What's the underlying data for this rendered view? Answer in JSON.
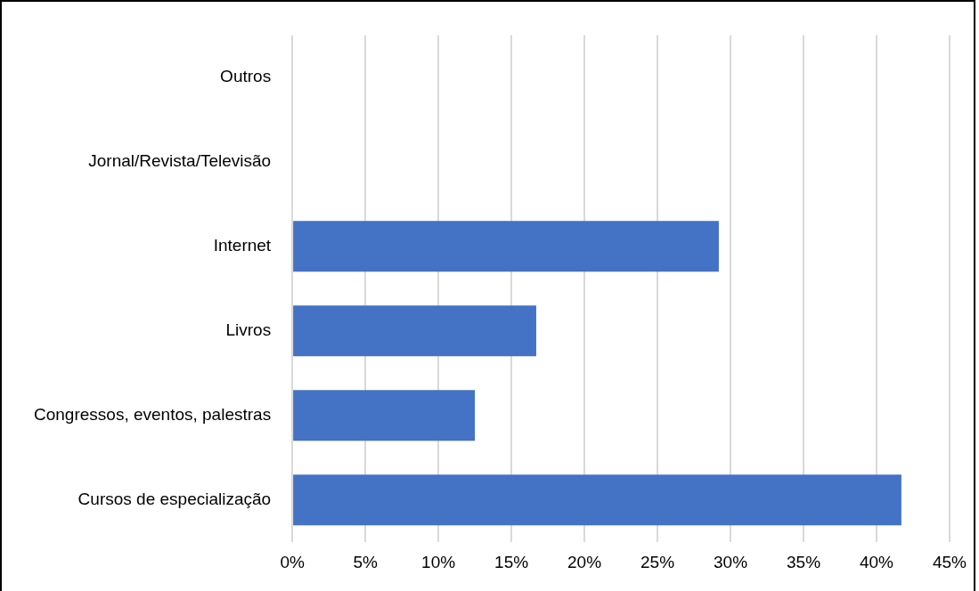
{
  "chart_data": {
    "type": "bar",
    "orientation": "horizontal",
    "categories": [
      "Outros",
      "Jornal/Revista/Televisão",
      "Internet",
      "Livros",
      "Congressos, eventos, palestras",
      "Cursos de especialização"
    ],
    "values": [
      0,
      0,
      29.2,
      16.7,
      12.5,
      41.7
    ],
    "color": "#4472c4",
    "xlim": [
      0,
      45
    ],
    "xticks": [
      {
        "value": 0,
        "label": "0%"
      },
      {
        "value": 5,
        "label": "5%"
      },
      {
        "value": 10,
        "label": "10%"
      },
      {
        "value": 15,
        "label": "15%"
      },
      {
        "value": 20,
        "label": "20%"
      },
      {
        "value": 25,
        "label": "25%"
      },
      {
        "value": 30,
        "label": "30%"
      },
      {
        "value": 35,
        "label": "35%"
      },
      {
        "value": 40,
        "label": "40%"
      },
      {
        "value": 45,
        "label": "45%"
      }
    ],
    "grid": "x",
    "legend": false
  }
}
